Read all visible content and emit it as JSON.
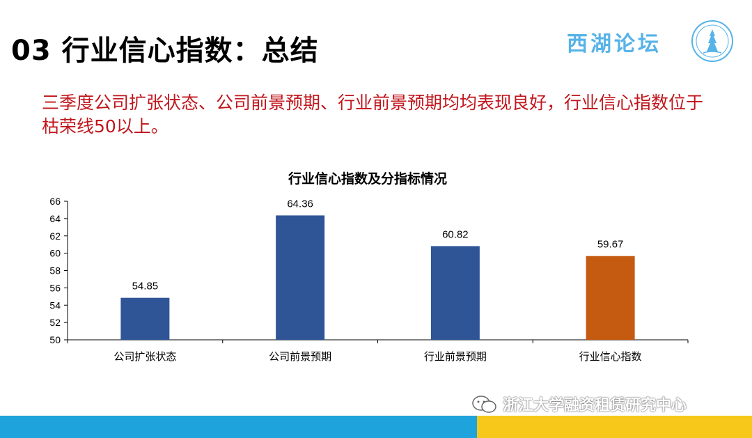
{
  "slide": {
    "title": "03 行业信心指数：总结",
    "summary": "三季度公司扩张状态、公司前景预期、行业前景预期均均表现良好，行业信心指数位于枯荣线50以上。"
  },
  "brand": {
    "name": "西湖论坛",
    "seal_icon": "forum-seal-logo-icon"
  },
  "watermark": {
    "text": "浙江大学融资租赁研究中心",
    "icon": "wechat-icon"
  },
  "colors": {
    "primary_bar": "#2f5597",
    "highlight_bar": "#c55a11",
    "summary_text": "#c0161c",
    "stripe_blue": "#1fa3dc",
    "stripe_yellow": "#f7c81a"
  },
  "chart_data": {
    "type": "bar",
    "title": "行业信心指数及分指标情况",
    "categories": [
      "公司扩张状态",
      "公司前景预期",
      "行业前景预期",
      "行业信心指数"
    ],
    "values": [
      54.85,
      64.36,
      60.82,
      59.67
    ],
    "value_labels": [
      "54.85",
      "64.36",
      "60.82",
      "59.67"
    ],
    "highlight_index": 3,
    "ylim": [
      50,
      66
    ],
    "yticks": [
      50,
      52,
      54,
      56,
      58,
      60,
      62,
      64,
      66
    ],
    "xlabel": "",
    "ylabel": "",
    "grid": false,
    "legend": "none"
  }
}
